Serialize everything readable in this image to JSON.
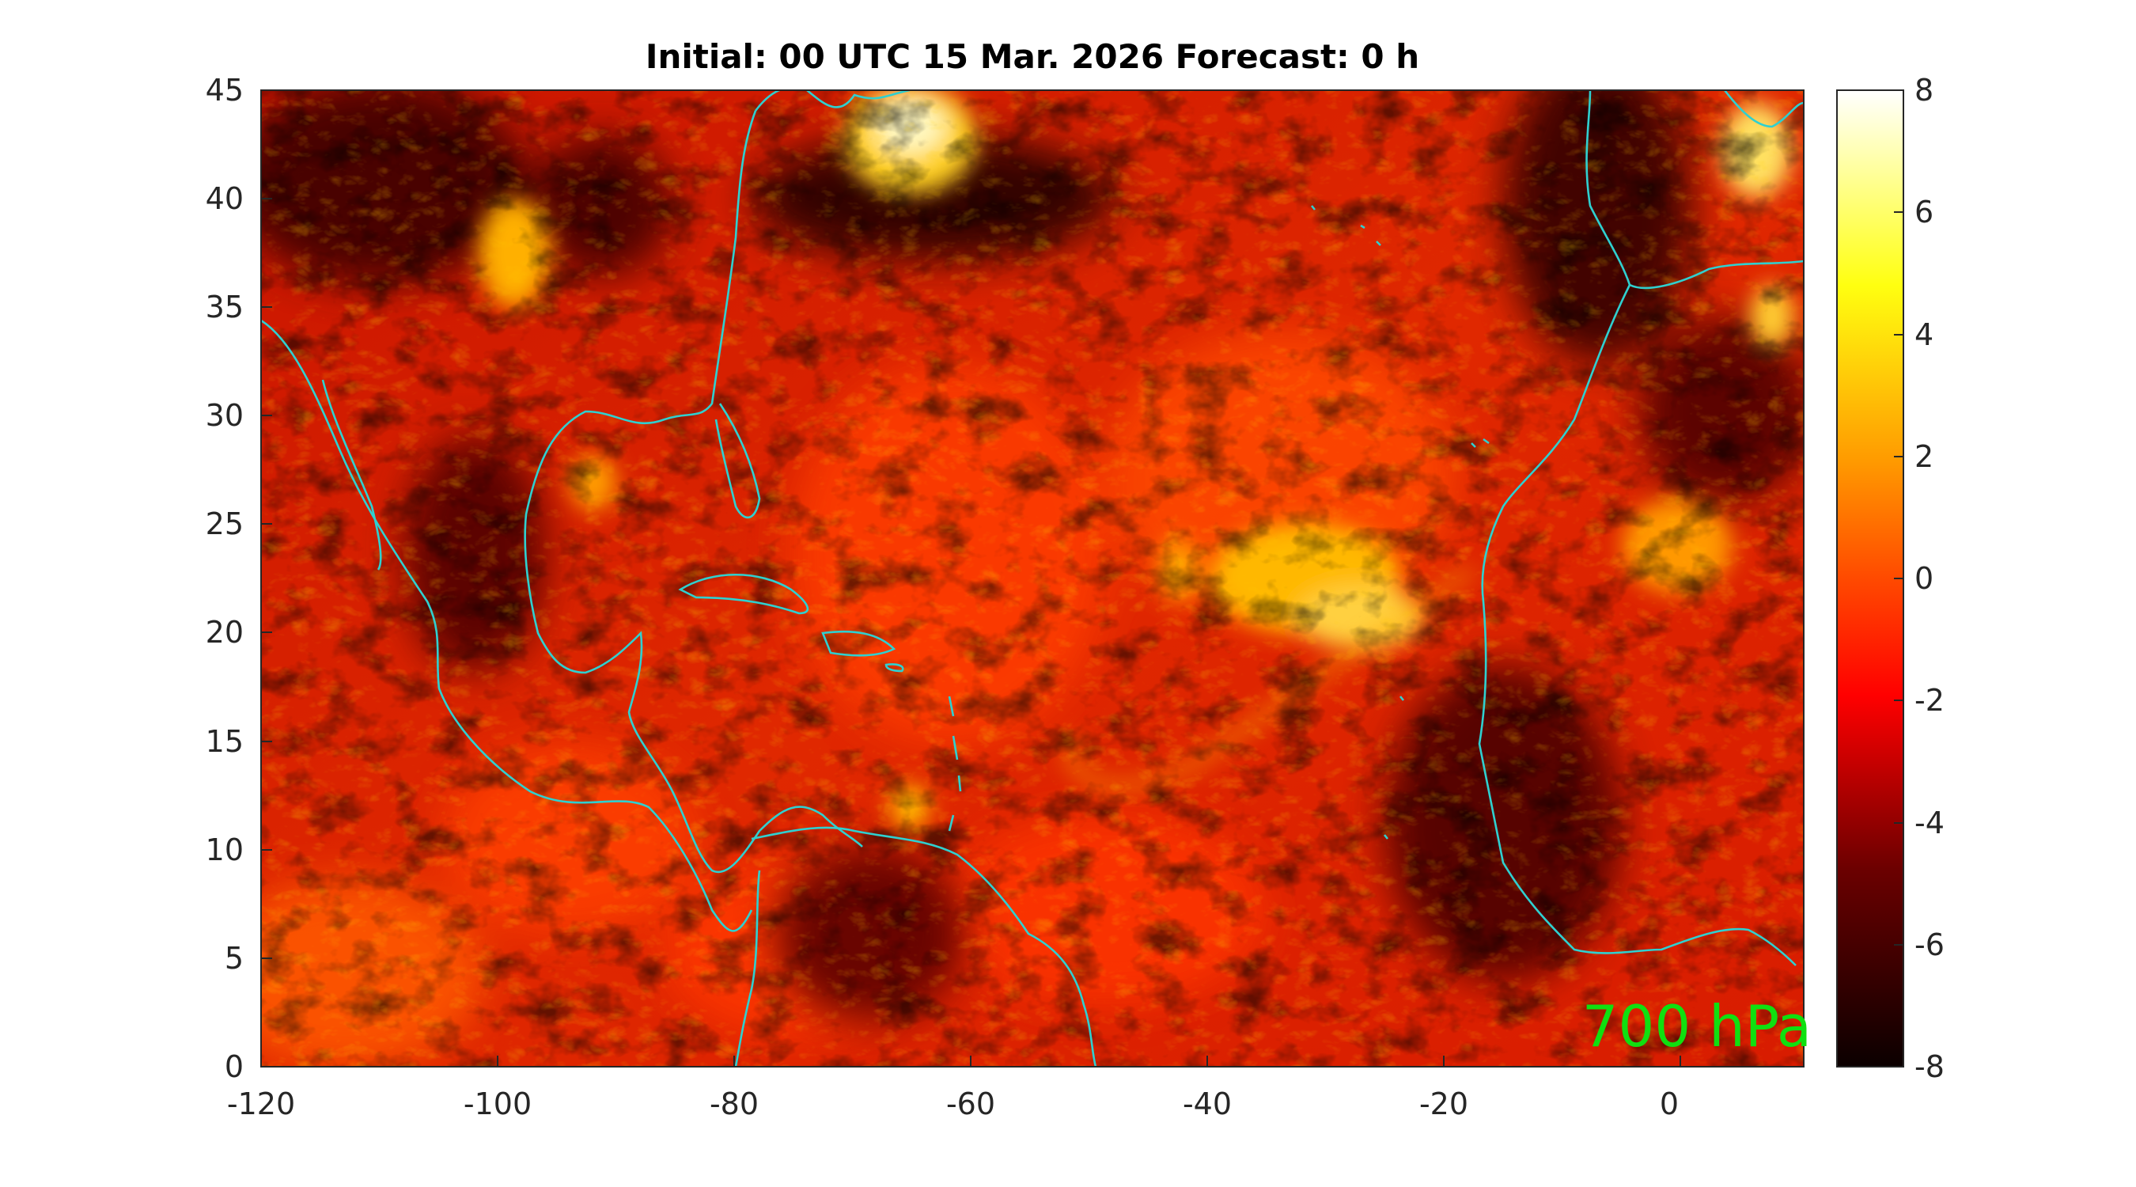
{
  "title": "Initial: 00 UTC 15 Mar. 2026 Forecast: 0 h",
  "level_label": "700 hPa",
  "map": {
    "lon_range": [
      -120,
      12
    ],
    "lat_range": [
      0,
      45
    ],
    "x_ticks": [
      "-120",
      "-100",
      "-80",
      "-60",
      "-40",
      "-20",
      "0"
    ],
    "y_ticks": [
      "0",
      "5",
      "10",
      "15",
      "20",
      "25",
      "30",
      "35",
      "40",
      "45"
    ],
    "coastline_color": "#2fd0d0",
    "level_label_color": "#10e010"
  },
  "colorbar": {
    "range": [
      -8,
      8
    ],
    "ticks": [
      "8",
      "6",
      "4",
      "2",
      "0",
      "-2",
      "-4",
      "-6",
      "-8"
    ],
    "colormap": "hot"
  }
}
